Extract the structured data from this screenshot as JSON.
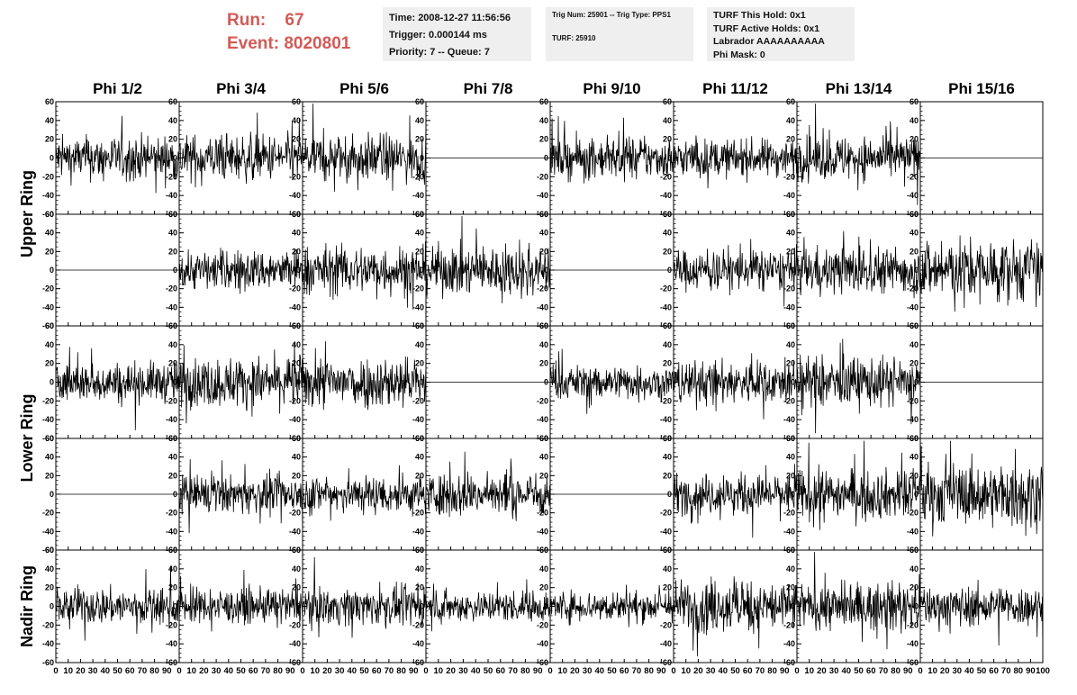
{
  "run": {
    "run_label": "Run:",
    "run_value": "67",
    "event_label": "Event:",
    "event_value": "8020801",
    "color": "#d45a55"
  },
  "time_box": {
    "line1": "Time: 2008-12-27 11:56:56",
    "line2": "Trigger: 0.000144 ms",
    "line3": "Priority: 7 -- Queue: 7"
  },
  "trig_box": {
    "line1": "Trig Num: 25901 -- Trig Type: PPS1",
    "line2": "TURF: 25910"
  },
  "turf_box": {
    "line1": "TURF This Hold: 0x1",
    "line2": "TURF Active Holds: 0x1",
    "line3": "Labrador AAAAAAAAAA",
    "line4": "Phi Mask: 0"
  },
  "columns": [
    "Phi 1/2",
    "Phi 3/4",
    "Phi 5/6",
    "Phi 7/8",
    "Phi 9/10",
    "Phi 11/12",
    "Phi 13/14",
    "Phi 15/16"
  ],
  "ring_labels": [
    "Upper Ring",
    "Lower Ring",
    "Nadir Ring"
  ],
  "chart_data": {
    "type": "line",
    "description_grid": "5 rows x 8 columns of waveform panels",
    "ylim": [
      -60,
      60
    ],
    "yticks": [
      -60,
      -40,
      -20,
      0,
      20,
      40,
      60
    ],
    "xlim": [
      0,
      100
    ],
    "xticks": [
      0,
      10,
      20,
      30,
      40,
      50,
      60,
      70,
      80,
      90,
      100
    ],
    "grid": false,
    "panels": [
      [
        {
          "flat": false,
          "amp": 14
        },
        {
          "flat": false,
          "amp": 15
        },
        {
          "flat": false,
          "amp": 15
        },
        {
          "flat": true,
          "amp": 0
        },
        {
          "flat": false,
          "amp": 13
        },
        {
          "flat": false,
          "amp": 12
        },
        {
          "flat": false,
          "amp": 14
        },
        {
          "flat": true,
          "amp": 0
        }
      ],
      [
        {
          "flat": true,
          "amp": 0
        },
        {
          "flat": false,
          "amp": 13
        },
        {
          "flat": false,
          "amp": 16
        },
        {
          "flat": false,
          "amp": 16
        },
        {
          "flat": true,
          "amp": 0
        },
        {
          "flat": false,
          "amp": 13
        },
        {
          "flat": false,
          "amp": 15
        },
        {
          "flat": false,
          "amp": 20
        }
      ],
      [
        {
          "flat": false,
          "amp": 13
        },
        {
          "flat": false,
          "amp": 16
        },
        {
          "flat": false,
          "amp": 17
        },
        {
          "flat": true,
          "amp": 0
        },
        {
          "flat": false,
          "amp": 11
        },
        {
          "flat": false,
          "amp": 14
        },
        {
          "flat": false,
          "amp": 16
        },
        {
          "flat": true,
          "amp": 0
        }
      ],
      [
        {
          "flat": true,
          "amp": 0
        },
        {
          "flat": false,
          "amp": 12
        },
        {
          "flat": false,
          "amp": 13
        },
        {
          "flat": false,
          "amp": 14
        },
        {
          "flat": true,
          "amp": 0
        },
        {
          "flat": false,
          "amp": 13
        },
        {
          "flat": false,
          "amp": 16
        },
        {
          "flat": false,
          "amp": 20
        }
      ],
      [
        {
          "flat": false,
          "amp": 12
        },
        {
          "flat": false,
          "amp": 11
        },
        {
          "flat": false,
          "amp": 12
        },
        {
          "flat": false,
          "amp": 10
        },
        {
          "flat": false,
          "amp": 10
        },
        {
          "flat": false,
          "amp": 17
        },
        {
          "flat": false,
          "amp": 15
        },
        {
          "flat": false,
          "amp": 13
        }
      ]
    ]
  }
}
